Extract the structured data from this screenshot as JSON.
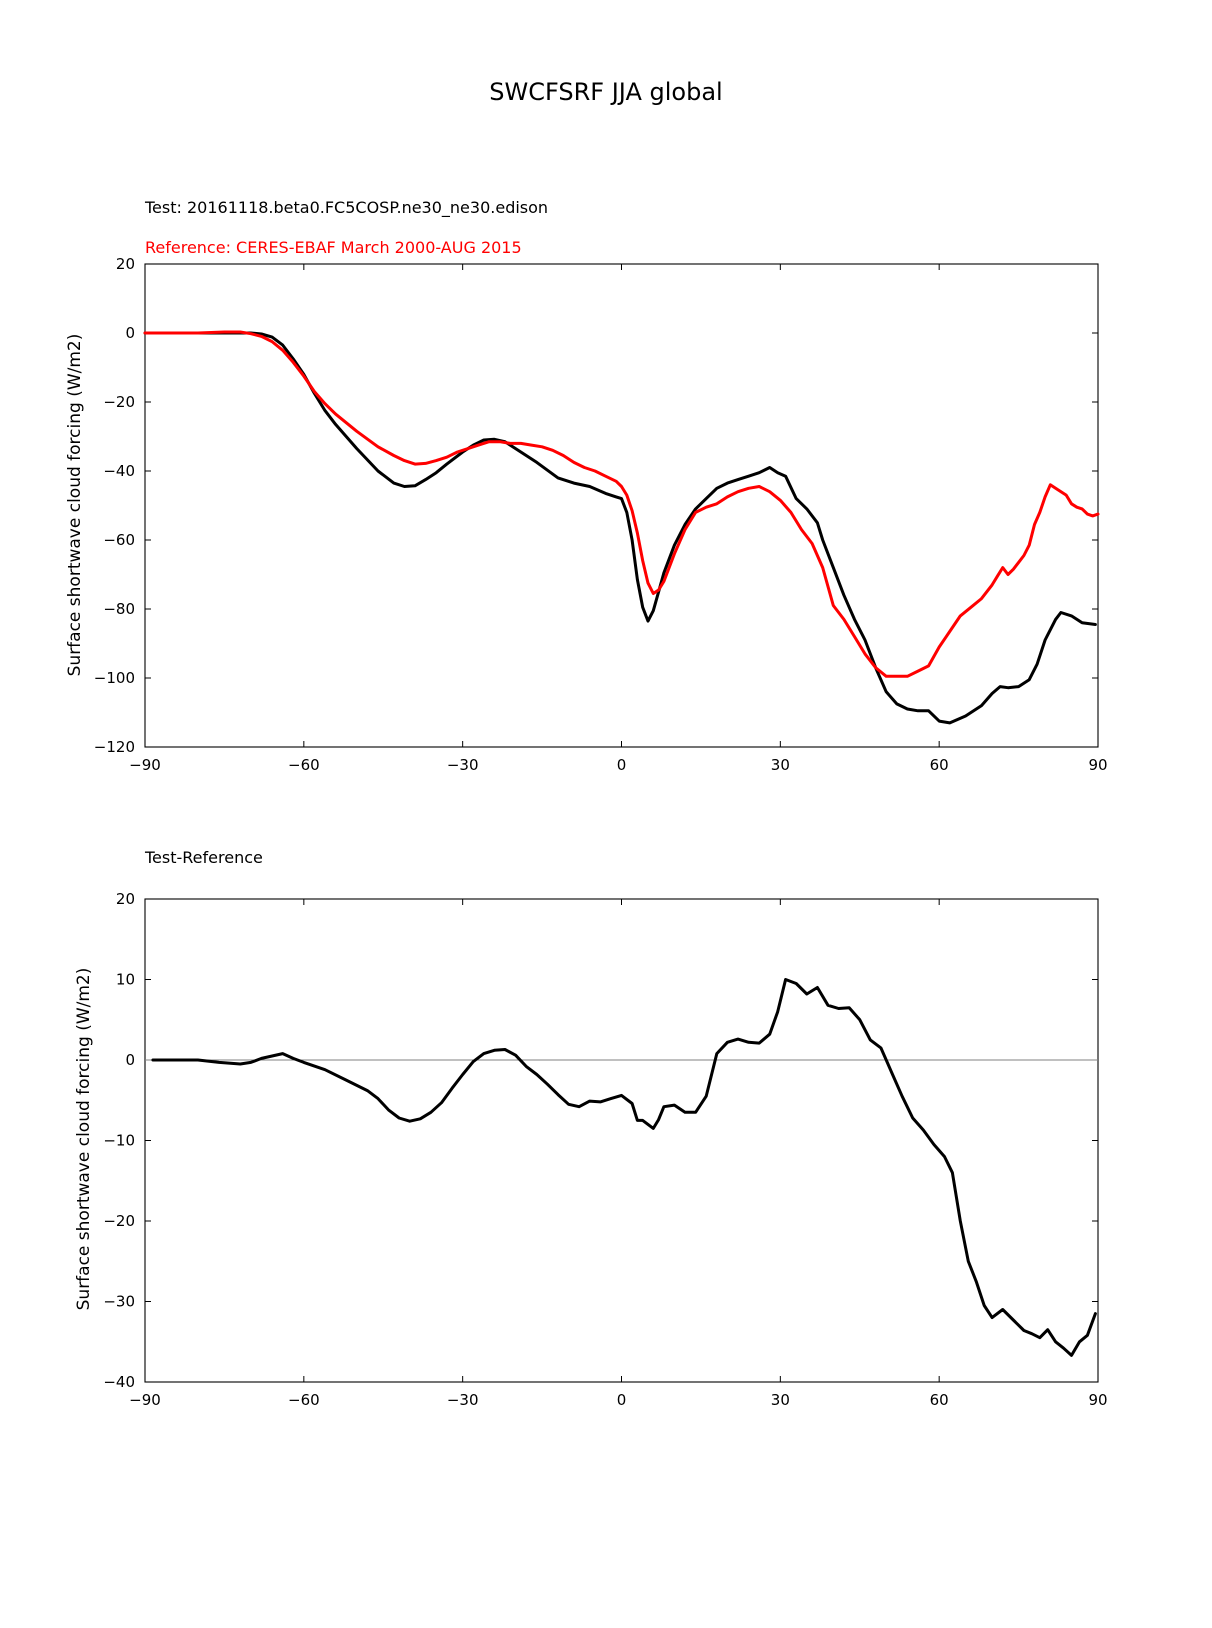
{
  "figure": {
    "title": "SWCFSRF JJA global"
  },
  "chart_data": [
    {
      "type": "line",
      "test_label": "Test: 20161118.beta0.FC5COSP.ne30_ne30.edison",
      "reference_label": "Reference: CERES-EBAF March 2000-AUG 2015",
      "xlabel": "",
      "ylabel": "Surface shortwave cloud forcing (W/m2)",
      "xlim": [
        -90,
        90
      ],
      "ylim": [
        -120,
        20
      ],
      "xticks": [
        -90,
        -60,
        -30,
        0,
        30,
        60,
        90
      ],
      "yticks": [
        -120,
        -100,
        -80,
        -60,
        -40,
        -20,
        0,
        20
      ],
      "xtick_labels": [
        "−90",
        "−60",
        "−30",
        "0",
        "30",
        "60",
        "90"
      ],
      "ytick_labels": [
        "−120",
        "−100",
        "−80",
        "−60",
        "−40",
        "−20",
        "0",
        "20"
      ],
      "colors": {
        "test": "#000000",
        "reference": "#ff0000"
      },
      "series": [
        {
          "key": "test",
          "x": [
            -90,
            -80,
            -75,
            -72,
            -70,
            -68,
            -66,
            -64,
            -62,
            -60,
            -58,
            -56,
            -54,
            -50,
            -46,
            -43,
            -41,
            -39,
            -37,
            -35,
            -33,
            -30,
            -28,
            -26,
            -24,
            -22,
            -20,
            -16,
            -12,
            -9,
            -6,
            -3,
            -1,
            0,
            1,
            2,
            3,
            4,
            5,
            6,
            7,
            8,
            10,
            12,
            14,
            16,
            18,
            20,
            22,
            24,
            26,
            28,
            29.5,
            31,
            33,
            35,
            37,
            38,
            40,
            42,
            44,
            46,
            48,
            50,
            52,
            54,
            56,
            58,
            60,
            62,
            65,
            68,
            70,
            71.5,
            73,
            75,
            77,
            78.5,
            80,
            82,
            83,
            85,
            87,
            89.5
          ],
          "values": [
            0,
            0,
            0,
            0,
            0,
            -0.3,
            -1.2,
            -3.5,
            -7.5,
            -12,
            -17.5,
            -22.5,
            -26.5,
            -33.5,
            -40,
            -43.5,
            -44.5,
            -44.3,
            -42.5,
            -40.5,
            -38,
            -34.5,
            -32.5,
            -31,
            -30.8,
            -31.5,
            -33.5,
            -37.5,
            -42,
            -43.5,
            -44.5,
            -46.5,
            -47.5,
            -48,
            -52,
            -60,
            -71.5,
            -79.5,
            -83.5,
            -80.5,
            -75,
            -69.5,
            -61.5,
            -55.5,
            -51,
            -48,
            -45,
            -43.5,
            -42.5,
            -41.5,
            -40.5,
            -39,
            -40.5,
            -41.5,
            -48,
            -51,
            -55,
            -60,
            -68,
            -76,
            -83,
            -89,
            -97,
            -104,
            -107.5,
            -109,
            -109.5,
            -109.5,
            -112.5,
            -113,
            -111,
            -108,
            -104.5,
            -102.5,
            -102.8,
            -102.5,
            -100.5,
            -96,
            -89,
            -83,
            -81,
            -82,
            -84,
            -84.5
          ]
        },
        {
          "key": "reference",
          "x": [
            -90,
            -80,
            -75,
            -72,
            -70,
            -68,
            -66,
            -64,
            -62,
            -60,
            -58,
            -56,
            -54,
            -50,
            -46,
            -43,
            -41,
            -39,
            -37,
            -35,
            -33,
            -31,
            -29,
            -27,
            -25,
            -23,
            -21,
            -19,
            -17,
            -15,
            -13,
            -11,
            -9,
            -7,
            -5,
            -3,
            -1,
            0,
            1,
            2,
            3,
            4,
            5,
            6,
            7,
            8,
            10,
            12,
            14,
            16,
            18,
            20,
            22,
            24,
            26,
            28,
            30,
            32,
            34,
            36,
            38,
            40,
            42,
            44,
            46,
            48,
            50,
            52,
            54,
            56,
            58,
            60,
            62,
            64,
            66,
            68,
            70,
            71,
            72,
            73,
            74,
            75,
            76,
            77,
            78,
            79,
            80,
            81,
            82,
            84,
            85,
            86,
            87,
            88,
            89,
            90
          ],
          "values": [
            0,
            0,
            0.3,
            0.3,
            -0.2,
            -1,
            -2.5,
            -5,
            -8.5,
            -12.5,
            -17,
            -20.5,
            -23.5,
            -28.5,
            -33,
            -35.5,
            -37,
            -38,
            -37.8,
            -37,
            -36,
            -34.5,
            -33.5,
            -32.5,
            -31.5,
            -31.5,
            -32,
            -32,
            -32.5,
            -33,
            -34,
            -35.5,
            -37.5,
            -39,
            -40,
            -41.5,
            -43,
            -44.5,
            -47,
            -51.5,
            -58,
            -66,
            -72.5,
            -75.5,
            -74.5,
            -72,
            -64,
            -57,
            -52,
            -50.5,
            -49.5,
            -47.5,
            -46,
            -45,
            -44.5,
            -46,
            -48.5,
            -52,
            -57,
            -61,
            -68,
            -79,
            -83,
            -88,
            -93,
            -97,
            -99.5,
            -99.5,
            -99.5,
            -98,
            -96.5,
            -91,
            -86.5,
            -82,
            -79.5,
            -77,
            -73,
            -70.5,
            -68,
            -70,
            -68.5,
            -66.5,
            -64.5,
            -61.5,
            -55.5,
            -52,
            -47.5,
            -44,
            -45,
            -47,
            -49.5,
            -50.5,
            -51,
            -52.5,
            -53,
            -52.5
          ]
        }
      ]
    },
    {
      "type": "line",
      "title": "Test-Reference",
      "xlabel": "",
      "ylabel": "Surface shortwave cloud forcing (W/m2)",
      "xlim": [
        -90,
        90
      ],
      "ylim": [
        -40,
        20
      ],
      "xticks": [
        -90,
        -60,
        -30,
        0,
        30,
        60,
        90
      ],
      "yticks": [
        -40,
        -30,
        -20,
        -10,
        0,
        10,
        20
      ],
      "xtick_labels": [
        "−90",
        "−60",
        "−30",
        "0",
        "30",
        "60",
        "90"
      ],
      "ytick_labels": [
        "−40",
        "−30",
        "−20",
        "−10",
        "0",
        "10",
        "20"
      ],
      "zero_line": true,
      "colors": {
        "diff": "#000000",
        "zero_line": "#808080"
      },
      "series": [
        {
          "key": "diff",
          "x": [
            -88.5,
            -80,
            -76,
            -72,
            -70,
            -68,
            -66,
            -64,
            -62,
            -60,
            -56,
            -52,
            -48,
            -46,
            -44,
            -42,
            -40,
            -38,
            -36,
            -34,
            -32,
            -30,
            -28,
            -26,
            -24,
            -22,
            -20,
            -18,
            -16,
            -14,
            -12,
            -10,
            -8,
            -6,
            -4,
            -2,
            0,
            2,
            3,
            4,
            6,
            7,
            8,
            10,
            12,
            14,
            16,
            18,
            20,
            22,
            24,
            26,
            28,
            29.5,
            31,
            33,
            35,
            37,
            39,
            41,
            43,
            45,
            47,
            49,
            51,
            53,
            55,
            57,
            59,
            61,
            62.5,
            64,
            65.5,
            67,
            68.5,
            70,
            72,
            74,
            76,
            77.5,
            79,
            80.5,
            82,
            83.5,
            85,
            86.5,
            88,
            89.5
          ],
          "values": [
            0,
            0,
            -0.3,
            -0.5,
            -0.3,
            0.2,
            0.5,
            0.8,
            0.2,
            -0.3,
            -1.2,
            -2.5,
            -3.8,
            -4.8,
            -6.2,
            -7.2,
            -7.6,
            -7.3,
            -6.5,
            -5.3,
            -3.5,
            -1.8,
            -0.2,
            0.8,
            1.2,
            1.3,
            0.6,
            -0.8,
            -1.8,
            -3,
            -4.3,
            -5.5,
            -5.8,
            -5.1,
            -5.2,
            -4.8,
            -4.4,
            -5.4,
            -7.5,
            -7.5,
            -8.5,
            -7.4,
            -5.8,
            -5.6,
            -6.5,
            -6.5,
            -4.5,
            0.8,
            2.2,
            2.6,
            2.2,
            2.1,
            3.2,
            6,
            10,
            9.5,
            8.2,
            9,
            6.8,
            6.4,
            6.5,
            5,
            2.5,
            1.5,
            -1.5,
            -4.5,
            -7.2,
            -8.7,
            -10.5,
            -12,
            -14,
            -20,
            -25,
            -27.5,
            -30.5,
            -32,
            -31,
            -32.3,
            -33.6,
            -34,
            -34.5,
            -33.5,
            -35,
            -35.8,
            -36.7,
            -35,
            -34.2,
            -31.5
          ]
        }
      ]
    }
  ]
}
